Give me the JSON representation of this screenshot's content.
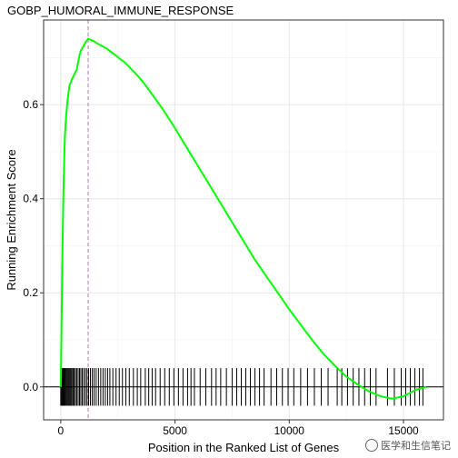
{
  "chart_data": {
    "type": "line",
    "title": "GOBP_HUMORAL_IMMUNE_RESPONSE",
    "xlabel": "Position in the Ranked List of Genes",
    "ylabel": "Running Enrichment Score",
    "xlim": [
      -750,
      16750
    ],
    "ylim": [
      -0.07,
      0.78
    ],
    "x_ticks": [
      0,
      5000,
      10000,
      15000
    ],
    "y_ticks": [
      0.0,
      0.2,
      0.4,
      0.6
    ],
    "x_tick_labels": [
      "0",
      "5000",
      "10000",
      "15000"
    ],
    "y_tick_labels": [
      "0.0",
      "0.2",
      "0.4",
      "0.6"
    ],
    "grid": true,
    "line_color": "#00ff00",
    "peak_line": {
      "x": 1200,
      "color": "#b07aa1",
      "style": "dashed"
    },
    "series": [
      {
        "x": [
          0,
          20,
          40,
          60,
          80,
          100,
          120,
          140,
          160,
          180,
          200,
          230,
          260,
          300,
          340,
          380,
          420,
          460,
          500,
          550,
          600,
          650,
          700,
          760,
          820,
          880,
          940,
          1000,
          1060,
          1120,
          1200,
          1300,
          1450,
          1600,
          1800,
          2000,
          2200,
          2400,
          2600,
          2800,
          3000,
          3300,
          3600,
          4000,
          4500,
          5000,
          5500,
          6000,
          6500,
          7000,
          7500,
          8000,
          8500,
          9000,
          9500,
          10000,
          10500,
          11000,
          11500,
          12000,
          12500,
          13000,
          13500,
          14000,
          14500,
          15000,
          15200,
          15400,
          15600,
          15800,
          16000
        ],
        "y": [
          0.0,
          0.08,
          0.16,
          0.24,
          0.31,
          0.37,
          0.42,
          0.46,
          0.5,
          0.53,
          0.55,
          0.57,
          0.59,
          0.61,
          0.625,
          0.64,
          0.645,
          0.65,
          0.655,
          0.66,
          0.665,
          0.67,
          0.675,
          0.69,
          0.705,
          0.715,
          0.72,
          0.725,
          0.73,
          0.735,
          0.74,
          0.738,
          0.735,
          0.73,
          0.725,
          0.72,
          0.712,
          0.705,
          0.697,
          0.69,
          0.68,
          0.665,
          0.648,
          0.622,
          0.588,
          0.55,
          0.51,
          0.47,
          0.43,
          0.39,
          0.35,
          0.31,
          0.27,
          0.235,
          0.2,
          0.165,
          0.132,
          0.1,
          0.07,
          0.045,
          0.022,
          0.005,
          -0.01,
          -0.02,
          -0.025,
          -0.02,
          -0.015,
          -0.01,
          -0.005,
          -0.003,
          0.0
        ]
      }
    ],
    "gene_hits": [
      0,
      30,
      60,
      90,
      120,
      150,
      180,
      210,
      250,
      290,
      330,
      370,
      410,
      450,
      490,
      540,
      590,
      640,
      700,
      760,
      820,
      880,
      940,
      1010,
      1080,
      1150,
      1220,
      1300,
      1380,
      1460,
      1550,
      1650,
      1750,
      1850,
      1950,
      2050,
      2150,
      2280,
      2420,
      2560,
      2700,
      2850,
      3000,
      3180,
      3350,
      3500,
      3700,
      3850,
      4000,
      4150,
      4350,
      4550,
      4750,
      4950,
      5150,
      5350,
      5550,
      5700,
      5850,
      6100,
      6350,
      6600,
      6800,
      7000,
      7250,
      7500,
      7700,
      7900,
      8100,
      8300,
      8500,
      8700,
      8900,
      9200,
      9450,
      9700,
      9950,
      10200,
      10500,
      10800,
      11100,
      11400,
      11700,
      12100,
      12300,
      12550,
      12800,
      13050,
      13300,
      13550,
      13800,
      14300,
      14600,
      14900,
      15100,
      15300,
      15500,
      15700,
      15850
    ]
  },
  "watermark": {
    "text": "医学和生信笔记"
  }
}
